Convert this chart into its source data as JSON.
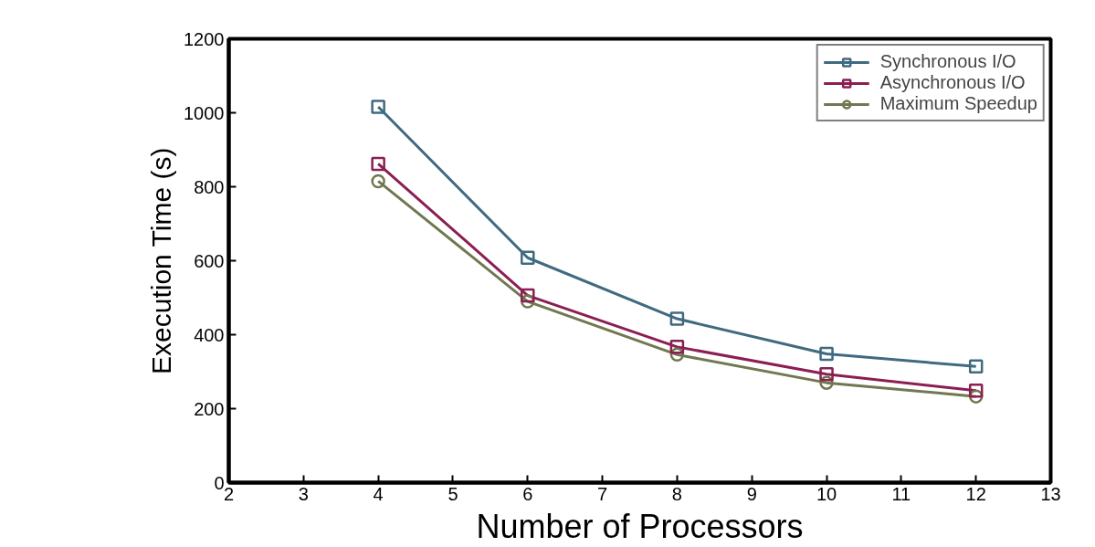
{
  "chart_data": {
    "type": "line",
    "xlabel": "Number of Processors",
    "ylabel": "Execution Time (s)",
    "x": [
      4,
      6,
      8,
      10,
      12
    ],
    "series": [
      {
        "name": "Synchronous I/O",
        "color": "#406a80",
        "marker": "square",
        "values": [
          1016,
          608,
          443,
          348,
          314
        ]
      },
      {
        "name": "Asynchronous I/O",
        "color": "#8b1f52",
        "marker": "square",
        "values": [
          862,
          506,
          367,
          293,
          249
        ]
      },
      {
        "name": "Maximum Speedup",
        "color": "#707850",
        "marker": "circle",
        "values": [
          815,
          490,
          346,
          270,
          233
        ]
      }
    ],
    "xlim": [
      2,
      13
    ],
    "xticks": [
      2,
      3,
      4,
      5,
      6,
      7,
      8,
      9,
      10,
      11,
      12,
      13
    ],
    "ylim": [
      0,
      1200
    ],
    "yticks": [
      0,
      200,
      400,
      600,
      800,
      1000,
      1200
    ],
    "grid": false,
    "legend": "top right",
    "line_style": "solid"
  }
}
